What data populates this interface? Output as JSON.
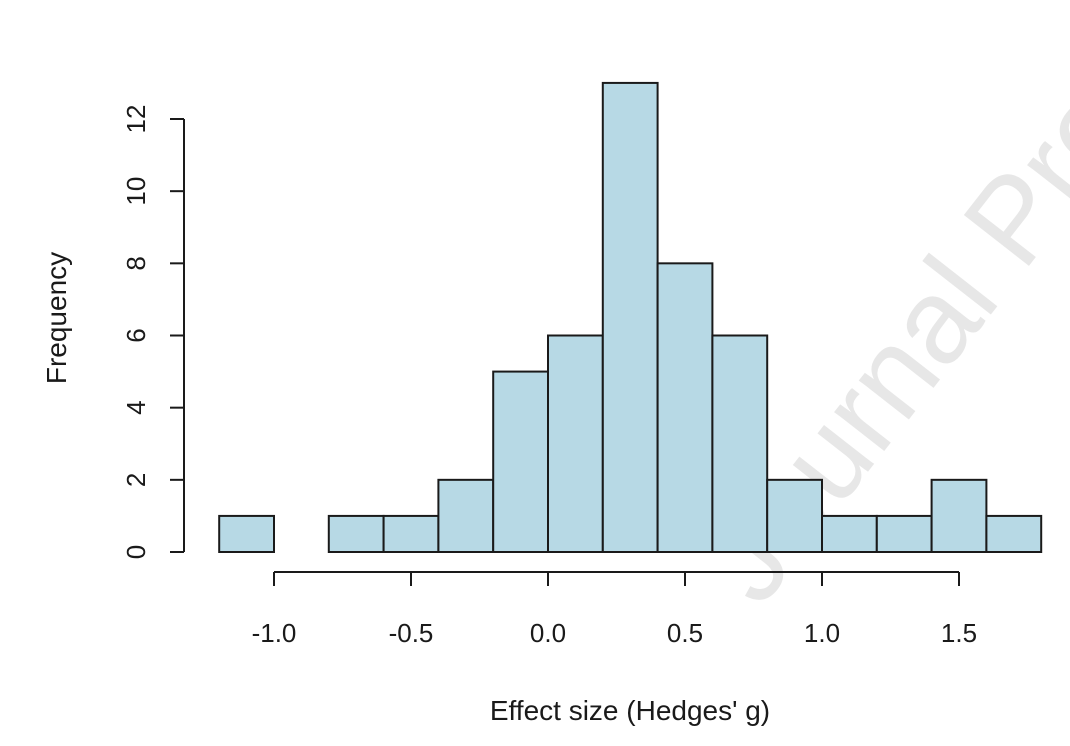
{
  "watermark_text": "Journal Pre-",
  "colors": {
    "bar_fill": "#b7d9e5",
    "bar_stroke": "#1a1a1a",
    "axis": "#1a1a1a",
    "watermark": "#d4d4d4"
  },
  "chart_data": {
    "type": "bar",
    "subtype": "histogram",
    "title": "",
    "xlabel": "Effect size (Hedges' g)",
    "ylabel": "Frequency",
    "bin_edges": [
      -1.2,
      -1.0,
      -0.8,
      -0.6,
      -0.4,
      -0.2,
      0.0,
      0.2,
      0.4,
      0.6,
      0.8,
      1.0,
      1.2,
      1.4,
      1.6,
      1.8
    ],
    "values": [
      1,
      0,
      1,
      1,
      2,
      5,
      6,
      13,
      8,
      6,
      2,
      1,
      1,
      2,
      1
    ],
    "xlim": [
      -1.0,
      1.5
    ],
    "ylim": [
      0,
      12
    ],
    "x_ticks": [
      -1.0,
      -0.5,
      0.0,
      0.5,
      1.0,
      1.5
    ],
    "x_tick_labels": [
      "-1.0",
      "-0.5",
      "0.0",
      "0.5",
      "1.0",
      "1.5"
    ],
    "y_ticks": [
      0,
      2,
      4,
      6,
      8,
      10,
      12
    ],
    "y_tick_labels": [
      "0",
      "2",
      "4",
      "6",
      "8",
      "10",
      "12"
    ],
    "grid": false,
    "legend": "none"
  }
}
